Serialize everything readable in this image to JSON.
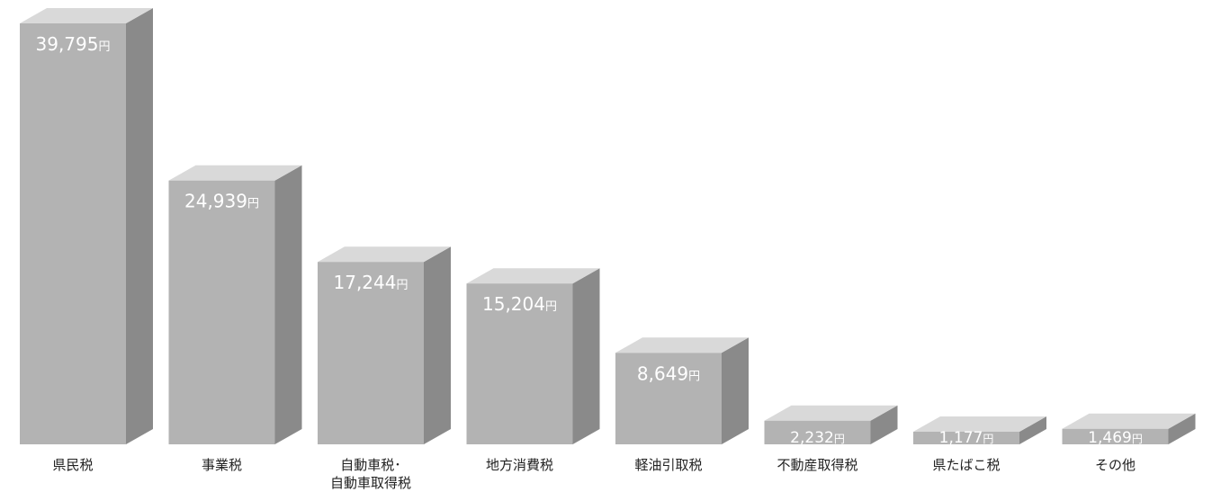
{
  "chart_data": {
    "type": "bar",
    "title": "",
    "xlabel": "",
    "ylabel": "",
    "ylim": [
      0,
      39795
    ],
    "grid": false,
    "legend": "none",
    "unit": "円",
    "categories": [
      [
        "県民税"
      ],
      [
        "事業税"
      ],
      [
        "自動車税･",
        "自動車取得税"
      ],
      [
        "地方消費税"
      ],
      [
        "軽油引取税"
      ],
      [
        "不動産取得税"
      ],
      [
        "県たばこ税"
      ],
      [
        "その他"
      ]
    ],
    "values": [
      39795,
      24939,
      17244,
      15204,
      8649,
      2232,
      1177,
      1469
    ],
    "value_labels": [
      "39,795",
      "24,939",
      "17,244",
      "15,204",
      "8,649",
      "2,232",
      "1,177",
      "1,469"
    ]
  },
  "colors": {
    "front": "#b3b3b3",
    "side": "#8a8a8a",
    "top": "#d9d9d9",
    "label": "#ffffff",
    "category_text": "#222222"
  }
}
